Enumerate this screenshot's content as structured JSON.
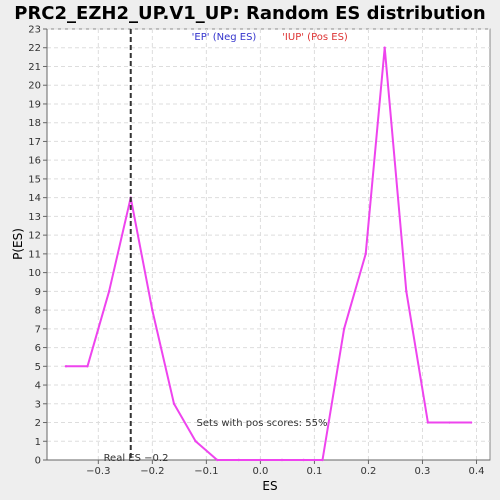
{
  "chart_data": {
    "type": "line",
    "title": "PRC2_EZH2_UP.V1_UP: Random ES distribution",
    "xlabel": "ES",
    "ylabel": "P(ES)",
    "xlim": [
      -0.395,
      0.425
    ],
    "ylim": [
      0,
      23
    ],
    "x_ticks": [
      -0.3,
      -0.2,
      -0.1,
      0.0,
      0.1,
      0.2,
      0.3,
      0.4
    ],
    "x_tick_labels": [
      "−0.3",
      "−0.2",
      "−0.1",
      "0.0",
      "0.1",
      "0.2",
      "0.3",
      "0.4"
    ],
    "y_ticks": [
      0,
      1,
      2,
      3,
      4,
      5,
      6,
      7,
      8,
      9,
      10,
      11,
      12,
      13,
      14,
      15,
      16,
      17,
      18,
      19,
      20,
      21,
      22,
      23
    ],
    "grid": true,
    "series": [
      {
        "color": "#ee44ee",
        "x": [
          -0.36,
          -0.32,
          -0.28,
          -0.24,
          -0.2,
          -0.16,
          -0.12,
          -0.08,
          -0.04,
          0.0,
          0.04,
          0.08,
          0.115,
          0.155,
          0.195,
          0.23,
          0.27,
          0.31,
          0.35,
          0.39
        ],
        "y": [
          5,
          5,
          9,
          14,
          8,
          3,
          1,
          0,
          0,
          0,
          0,
          0,
          0,
          7,
          11,
          22,
          9,
          2,
          2,
          2
        ]
      }
    ],
    "real_es": {
      "value": -0.24,
      "label": "Real ES −0.2",
      "color": "#333333"
    },
    "legend": [
      {
        "text": "'EP' (Neg ES)",
        "color": "#3333cc"
      },
      {
        "text": "'IUP' (Pos ES)",
        "color": "#dd3333"
      }
    ],
    "annotation": "Sets with pos scores: 55%"
  }
}
